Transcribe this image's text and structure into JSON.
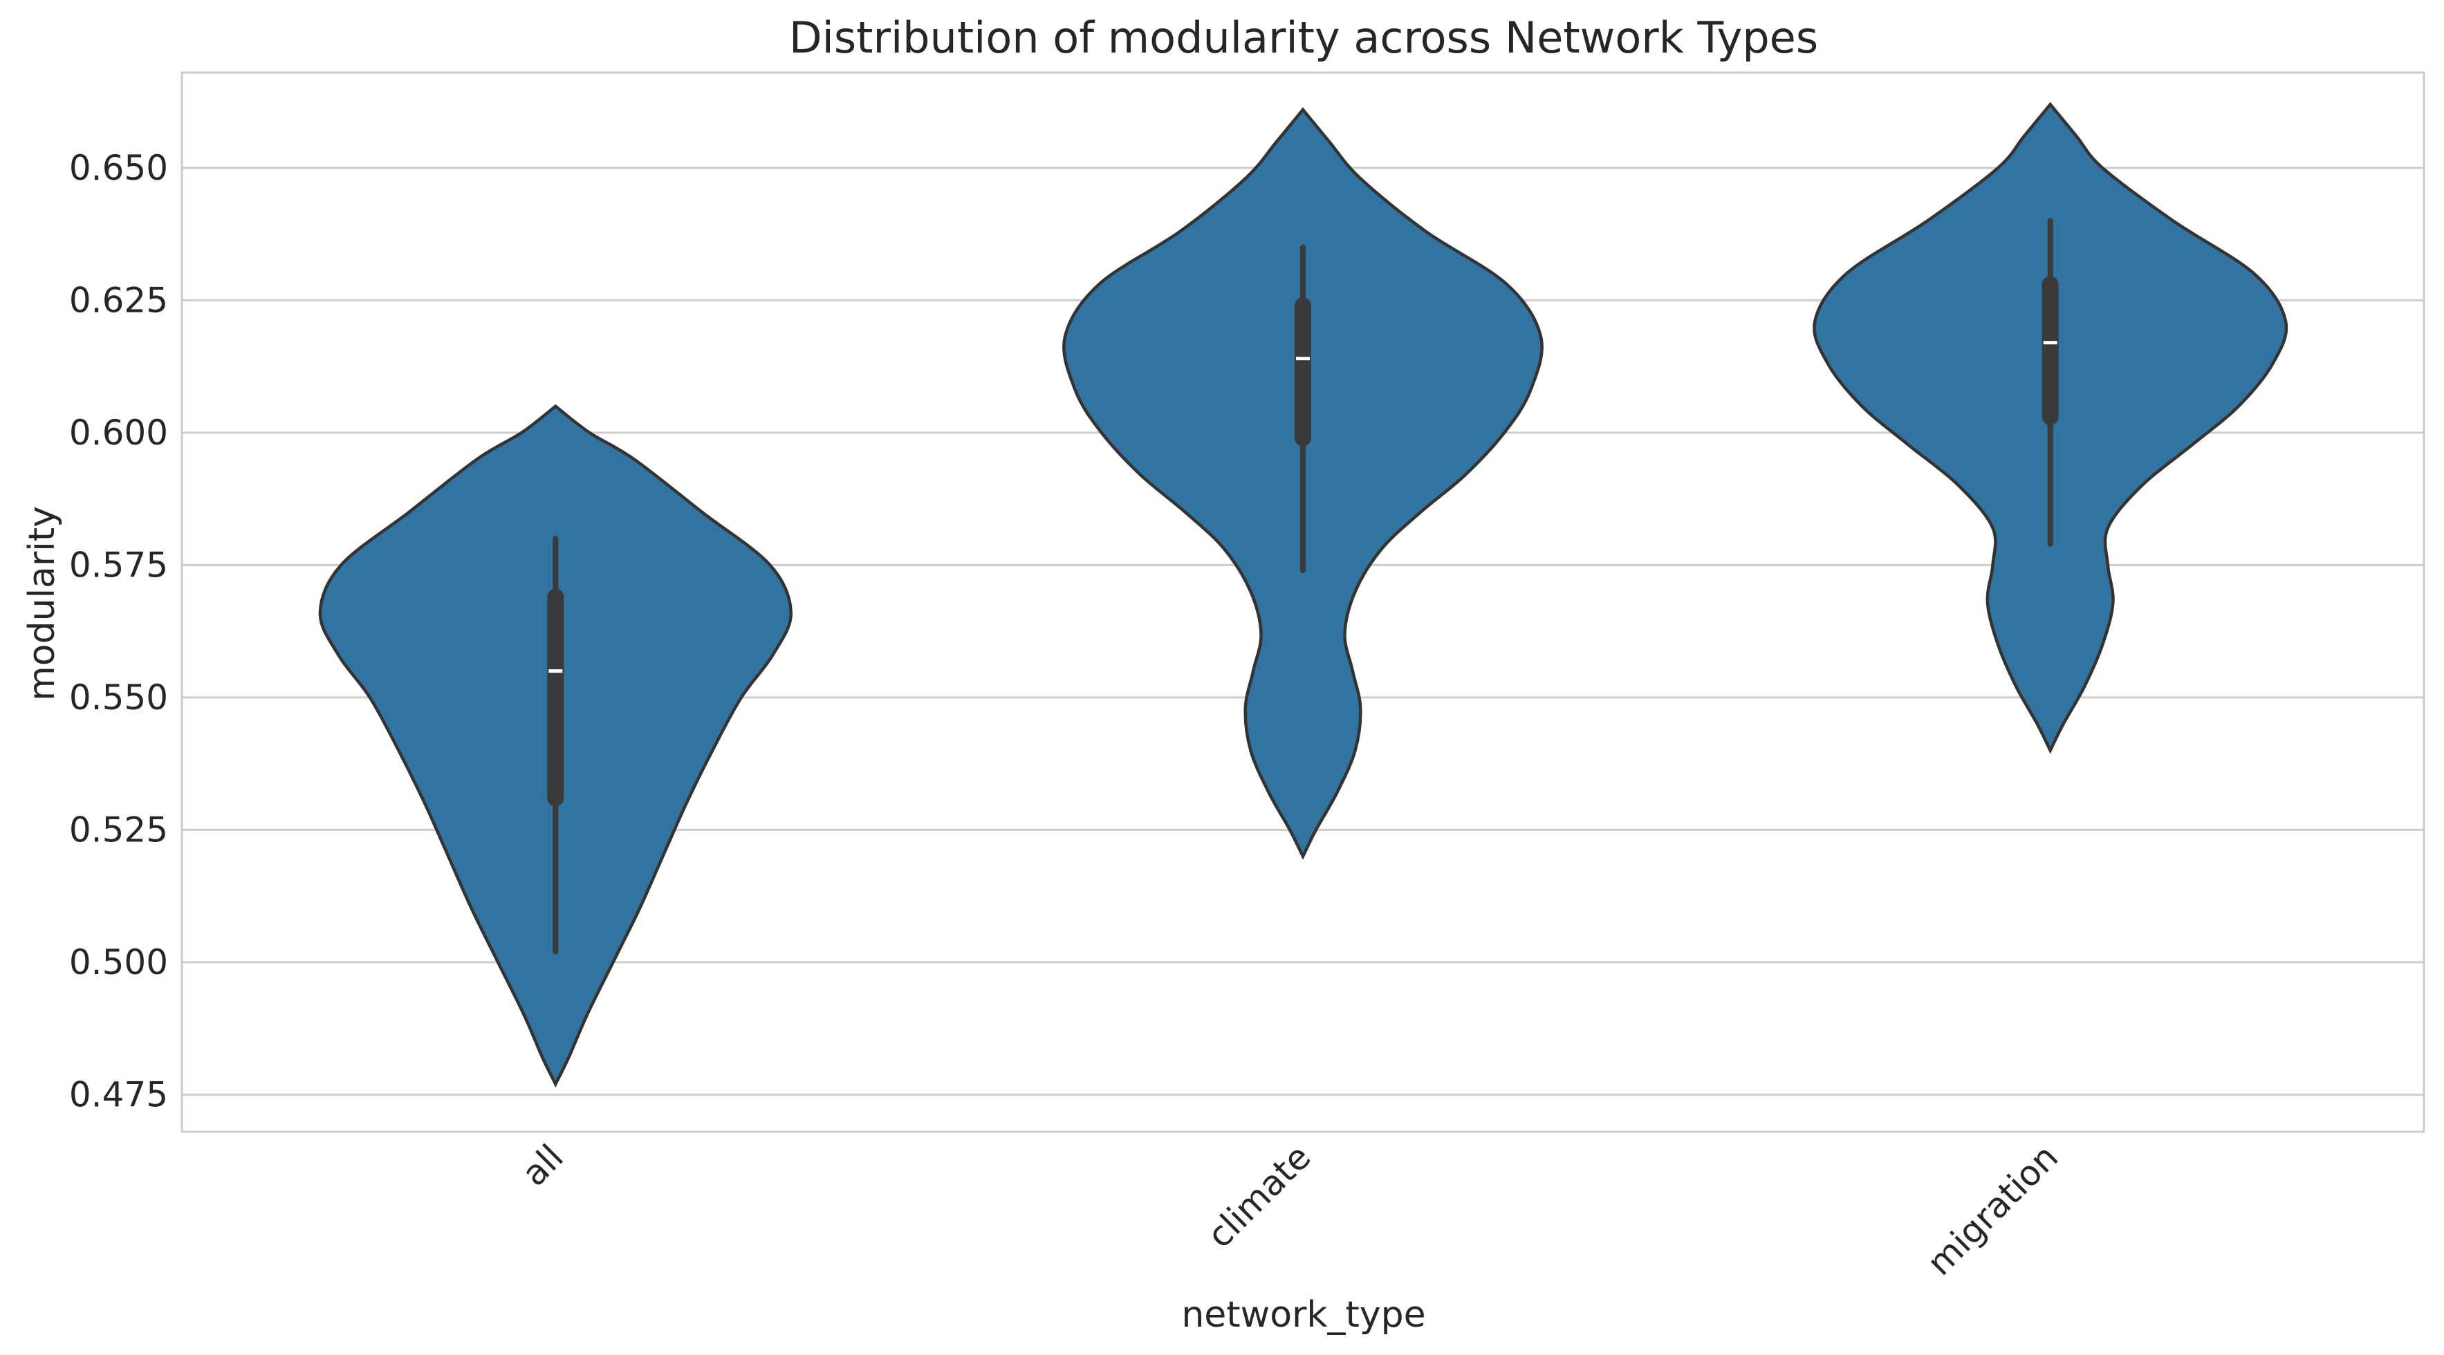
{
  "chart_data": {
    "type": "violin",
    "title": "Distribution of modularity across Network Types",
    "xlabel": "network_type",
    "ylabel": "modularity",
    "categories": [
      "all",
      "climate",
      "migration"
    ],
    "ylim": [
      0.468,
      0.668
    ],
    "yticks": [
      0.475,
      0.5,
      0.525,
      0.55,
      0.575,
      0.6,
      0.625,
      0.65
    ],
    "ytick_labels": [
      "0.475",
      "0.500",
      "0.525",
      "0.550",
      "0.575",
      "0.600",
      "0.625",
      "0.650"
    ],
    "xtick_rotation": -45,
    "grid": "horizontal",
    "color": "#3274a1",
    "series": [
      {
        "category": "all",
        "min": 0.502,
        "q1": 0.531,
        "median": 0.555,
        "q3": 0.569,
        "max": 0.58,
        "density": [
          [
            0.477,
            0.0
          ],
          [
            0.482,
            0.05
          ],
          [
            0.49,
            0.12
          ],
          [
            0.5,
            0.22
          ],
          [
            0.51,
            0.32
          ],
          [
            0.52,
            0.41
          ],
          [
            0.53,
            0.5
          ],
          [
            0.54,
            0.6
          ],
          [
            0.55,
            0.71
          ],
          [
            0.558,
            0.83
          ],
          [
            0.566,
            0.9
          ],
          [
            0.575,
            0.82
          ],
          [
            0.585,
            0.56
          ],
          [
            0.595,
            0.3
          ],
          [
            0.6,
            0.13
          ],
          [
            0.605,
            0.0
          ]
        ]
      },
      {
        "category": "climate",
        "min": 0.574,
        "q1": 0.599,
        "median": 0.614,
        "q3": 0.624,
        "max": 0.635,
        "density": [
          [
            0.52,
            0.0
          ],
          [
            0.525,
            0.05
          ],
          [
            0.532,
            0.13
          ],
          [
            0.54,
            0.2
          ],
          [
            0.548,
            0.22
          ],
          [
            0.555,
            0.19
          ],
          [
            0.562,
            0.16
          ],
          [
            0.57,
            0.2
          ],
          [
            0.578,
            0.3
          ],
          [
            0.585,
            0.45
          ],
          [
            0.592,
            0.62
          ],
          [
            0.6,
            0.77
          ],
          [
            0.608,
            0.87
          ],
          [
            0.618,
            0.91
          ],
          [
            0.628,
            0.78
          ],
          [
            0.638,
            0.47
          ],
          [
            0.648,
            0.22
          ],
          [
            0.655,
            0.1
          ],
          [
            0.661,
            0.0
          ]
        ]
      },
      {
        "category": "migration",
        "min": 0.579,
        "q1": 0.603,
        "median": 0.617,
        "q3": 0.628,
        "max": 0.64,
        "density": [
          [
            0.54,
            0.0
          ],
          [
            0.545,
            0.05
          ],
          [
            0.552,
            0.13
          ],
          [
            0.56,
            0.2
          ],
          [
            0.568,
            0.24
          ],
          [
            0.575,
            0.22
          ],
          [
            0.582,
            0.22
          ],
          [
            0.59,
            0.35
          ],
          [
            0.598,
            0.55
          ],
          [
            0.605,
            0.72
          ],
          [
            0.613,
            0.85
          ],
          [
            0.621,
            0.9
          ],
          [
            0.63,
            0.78
          ],
          [
            0.64,
            0.47
          ],
          [
            0.65,
            0.2
          ],
          [
            0.656,
            0.1
          ],
          [
            0.662,
            0.0
          ]
        ]
      }
    ]
  }
}
